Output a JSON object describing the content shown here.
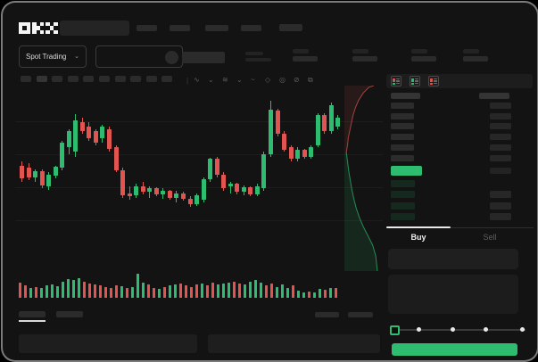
{
  "brand": {
    "name": "OKX",
    "logo_icon": "okx-pixel-logo"
  },
  "colors": {
    "up": "#2ebd70",
    "down": "#e25450",
    "bg": "#131313",
    "placeholder": "#2b2b2b",
    "bid_row_bg": "#16291e",
    "last_price_bg": "#2ebd70",
    "buy_button_bg": "#2ebd70"
  },
  "header": {
    "market_selector": {
      "label": "Spot Trading",
      "chevron": "⌄"
    },
    "pair_selector": {
      "chevron": "⌄"
    },
    "nav_item_count": 5,
    "stat_group_count": 4
  },
  "chart_toolbar": {
    "timeframe_slot_count": 10,
    "active_timeframe_index": 1,
    "icons": [
      "indicator-icon",
      "chevron-down-icon",
      "chart-type-icon",
      "chevron-down-icon",
      "line-tool-icon",
      "draw-icon",
      "camera-icon",
      "hide-icon",
      "fullscreen-icon"
    ],
    "glyphs": [
      "∿",
      "⌄",
      "≋",
      "⌄",
      "~",
      "◇",
      "◎",
      "⊘",
      "⧉"
    ]
  },
  "order_book": {
    "layout_icons": [
      "book-both-icon",
      "book-bids-icon",
      "book-asks-icon"
    ],
    "ask_row_count": 6,
    "bid_row_count": 4,
    "bid_rows_with_size_bar": [
      1,
      2,
      3
    ]
  },
  "trade_panel": {
    "tabs": [
      {
        "label": "Buy",
        "active": true
      },
      {
        "label": "Sell",
        "active": false
      }
    ],
    "slider": {
      "stop_count": 5,
      "handle_index": 0
    }
  },
  "chart_data": [
    {
      "type": "candlestick",
      "title": "",
      "note": "price axis unlabeled in screenshot; OHLC values normalized to 0-100 scale",
      "ylim": [
        0,
        100
      ],
      "grid": "horizontal",
      "candles": [
        [
          40,
          44,
          26,
          29
        ],
        [
          38,
          42,
          27,
          30
        ],
        [
          30,
          37,
          26,
          35
        ],
        [
          35,
          37,
          20,
          23
        ],
        [
          22,
          34,
          19,
          32
        ],
        [
          31,
          40,
          29,
          39
        ],
        [
          38,
          62,
          36,
          60
        ],
        [
          56,
          72,
          50,
          70
        ],
        [
          52,
          85,
          48,
          80
        ],
        [
          78,
          82,
          68,
          70
        ],
        [
          74,
          78,
          62,
          64
        ],
        [
          70,
          72,
          58,
          60
        ],
        [
          64,
          76,
          60,
          74
        ],
        [
          72,
          74,
          52,
          55
        ],
        [
          56,
          58,
          34,
          36
        ],
        [
          36,
          38,
          12,
          14
        ],
        [
          16,
          22,
          10,
          13
        ],
        [
          14,
          24,
          12,
          22
        ],
        [
          22,
          26,
          15,
          17
        ],
        [
          17,
          22,
          12,
          20
        ],
        [
          20,
          21,
          13,
          15
        ],
        [
          15,
          20,
          11,
          18
        ],
        [
          18,
          19,
          10,
          12
        ],
        [
          12,
          18,
          8,
          16
        ],
        [
          16,
          17,
          9,
          11
        ],
        [
          11,
          13,
          4,
          6
        ],
        [
          6,
          16,
          5,
          14
        ],
        [
          10,
          30,
          8,
          28
        ],
        [
          28,
          47,
          26,
          46
        ],
        [
          46,
          48,
          30,
          32
        ],
        [
          32,
          34,
          18,
          20
        ],
        [
          22,
          26,
          16,
          24
        ],
        [
          24,
          25,
          15,
          17
        ],
        [
          17,
          23,
          14,
          21
        ],
        [
          21,
          22,
          13,
          15
        ],
        [
          15,
          24,
          13,
          22
        ],
        [
          20,
          52,
          18,
          50
        ],
        [
          50,
          97,
          48,
          89
        ],
        [
          88,
          90,
          66,
          68
        ],
        [
          68,
          70,
          52,
          54
        ],
        [
          56,
          58,
          44,
          46
        ],
        [
          46,
          56,
          44,
          54
        ],
        [
          54,
          55,
          46,
          48
        ],
        [
          48,
          58,
          46,
          56
        ],
        [
          58,
          86,
          56,
          84
        ],
        [
          84,
          86,
          68,
          70
        ],
        [
          70,
          95,
          68,
          93
        ],
        [
          74,
          84,
          72,
          82
        ]
      ]
    },
    {
      "type": "bar",
      "name": "volume",
      "note": "heights normalized 0-100",
      "values": [
        55,
        40,
        30,
        35,
        28,
        40,
        45,
        38,
        60,
        70,
        65,
        75,
        58,
        50,
        45,
        40,
        35,
        30,
        42,
        38,
        30,
        35,
        95,
        55,
        45,
        30,
        25,
        35,
        40,
        45,
        50,
        40,
        35,
        45,
        50,
        40,
        55,
        45,
        50,
        55,
        60,
        50,
        45,
        60,
        65,
        55,
        40,
        50,
        35,
        45,
        30,
        40,
        15,
        10,
        12,
        8,
        25,
        20,
        28,
        28
      ],
      "colors": [
        "r",
        "r",
        "g",
        "r",
        "g",
        "g",
        "g",
        "g",
        "g",
        "g",
        "g",
        "g",
        "r",
        "r",
        "r",
        "r",
        "r",
        "r",
        "r",
        "g",
        "r",
        "g",
        "g",
        "g",
        "r",
        "r",
        "g",
        "r",
        "g",
        "g",
        "r",
        "r",
        "r",
        "r",
        "g",
        "r",
        "r",
        "g",
        "g",
        "g",
        "r",
        "r",
        "g",
        "g",
        "g",
        "g",
        "r",
        "r",
        "g",
        "g",
        "g",
        "r",
        "g",
        "g",
        "r",
        "g",
        "g",
        "r",
        "g",
        "r"
      ]
    },
    {
      "type": "area",
      "name": "depth",
      "orientation": "vertical",
      "asks_steps": [
        [
          0.05,
          0.36
        ],
        [
          0.08,
          0.32
        ],
        [
          0.1,
          0.28
        ],
        [
          0.14,
          0.24
        ],
        [
          0.18,
          0.2
        ],
        [
          0.22,
          0.16
        ],
        [
          0.28,
          0.12
        ],
        [
          0.36,
          0.08
        ],
        [
          0.48,
          0.04
        ],
        [
          0.62,
          0.01
        ],
        [
          0.75,
          0.0
        ]
      ],
      "bids_steps": [
        [
          0.05,
          0.36
        ],
        [
          0.08,
          0.41
        ],
        [
          0.11,
          0.46
        ],
        [
          0.15,
          0.51
        ],
        [
          0.19,
          0.56
        ],
        [
          0.24,
          0.61
        ],
        [
          0.3,
          0.66
        ],
        [
          0.38,
          0.71
        ],
        [
          0.48,
          0.76
        ],
        [
          0.6,
          0.81
        ],
        [
          0.72,
          0.86
        ],
        [
          0.8,
          0.92
        ],
        [
          0.84,
          1.0
        ]
      ]
    }
  ]
}
